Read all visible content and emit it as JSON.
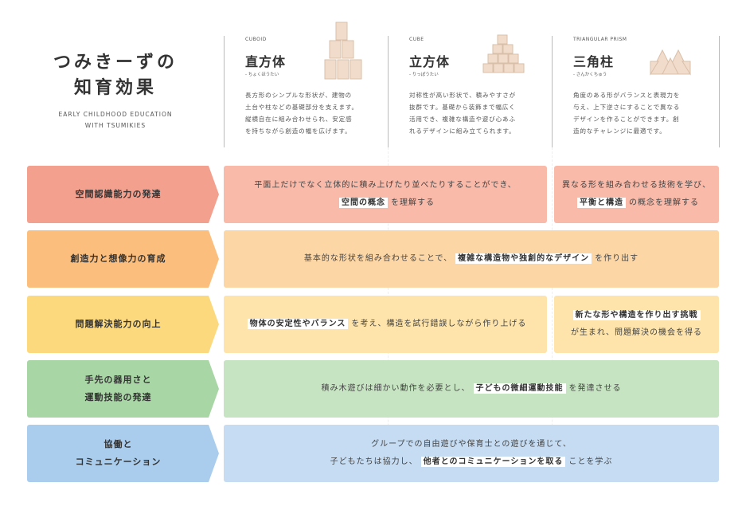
{
  "header": {
    "title": [
      "つみきーずの",
      "知育効果"
    ],
    "subtitle": [
      "EARLY CHILDHOOD EDUCATION",
      "WITH TSUMIKIES"
    ]
  },
  "shapes": [
    {
      "en": "CUBOID",
      "name": "直方体",
      "kana": "- ちょくほうたい",
      "description": [
        "長方形のシンプルな形状が、建物の",
        "土台や柱などの基礎部分を支えます。",
        "縦横自在に組み合わせられ、安定感",
        "を持ちながら創造の幅を広げます。"
      ]
    },
    {
      "en": "CUBE",
      "name": "立方体",
      "kana": "- りっぽうたい",
      "description": [
        "対称性が高い形状で、積みやすさが",
        "抜群です。基礎から装飾まで幅広く",
        "活用でき、複雑な構造や遊び心あふ",
        "れるデザインに組み立てられます。"
      ]
    },
    {
      "en": "TRIANGULAR PRISM",
      "name": "三角柱",
      "kana": "- さんかくちゅう",
      "description": [
        "角度のある形がバランスと表現力を",
        "与え、上下逆さにすることで異なる",
        "デザインを作ることができます。創",
        "造的なチャレンジに最適です。"
      ]
    }
  ],
  "rows": [
    {
      "label": [
        "空間認識能力の発達"
      ],
      "label_color": "#f3a08f",
      "cell_color": "#f9baa9",
      "cells": [
        {
          "lines": [
            [
              "平面上だけでなく立体的に積み上げたり並べたりすることができ、"
            ],
            [
              {
                "em": "空間の概念"
              },
              "を理解する"
            ]
          ]
        },
        {
          "lines": [
            [
              "異なる形を組み合わせる技術を学び、"
            ],
            [
              {
                "em": "平衡と構造"
              },
              "の概念を理解する"
            ]
          ]
        }
      ]
    },
    {
      "label": [
        "創造力と想像力の育成"
      ],
      "label_color": "#fbbe7c",
      "cell_color": "#fdd6a5",
      "cells": [
        {
          "lines": [
            [
              "基本的な形状を組み合わせることで、",
              {
                "em": "複雑な構造物や独創的なデザイン"
              },
              "を作り出す"
            ]
          ]
        }
      ]
    },
    {
      "label": [
        "問題解決能力の向上"
      ],
      "label_color": "#fdd97e",
      "cell_color": "#fee4ab",
      "cells": [
        {
          "lines": [
            [
              {
                "em": "物体の安定性やバランス"
              },
              "を考え、構造を試行錯誤しながら作り上げる"
            ]
          ]
        },
        {
          "lines": [
            [
              {
                "em": "新たな形や構造を作り出す挑戦"
              }
            ],
            [
              "が生まれ、問題解決の機会を得る"
            ]
          ]
        }
      ]
    },
    {
      "label": [
        "手先の器用さと",
        "運動技能の発達"
      ],
      "label_color": "#a8d6a5",
      "cell_color": "#c6e4c1",
      "cells": [
        {
          "lines": [
            [
              "積み木遊びは細かい動作を必要とし、",
              {
                "em": "子どもの微細運動技能"
              },
              "を発達させる"
            ]
          ]
        }
      ]
    },
    {
      "label": [
        "協働と",
        "コミュニケーション"
      ],
      "label_color": "#aacdee",
      "cell_color": "#c5dcf3",
      "cells": [
        {
          "lines": [
            [
              "グループでの自由遊びや保育士との遊びを通じて、"
            ],
            [
              "子どもたちは協力し、",
              {
                "em": "他者とのコミュニケーションを取る"
              },
              "ことを学ぶ"
            ]
          ]
        }
      ]
    }
  ]
}
